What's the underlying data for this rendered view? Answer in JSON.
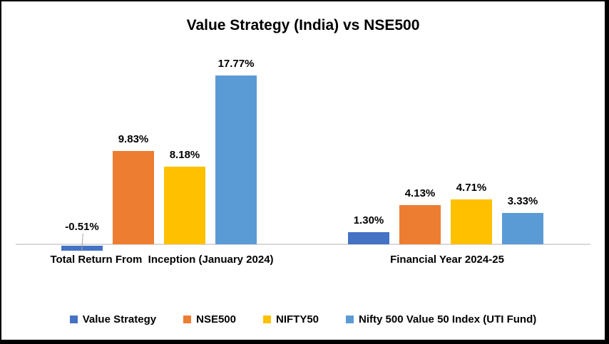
{
  "title": "Value Strategy (India) vs NSE500",
  "chart_data": {
    "type": "bar",
    "categories": [
      "Total Return From  Inception (January 2024)",
      "Financial Year 2024-25"
    ],
    "series": [
      {
        "name": "Value Strategy",
        "color": "#4472C4",
        "values": [
          -0.51,
          1.3
        ],
        "labels": [
          "-0.51%",
          "1.30%"
        ]
      },
      {
        "name": "NSE500",
        "color": "#ED7D31",
        "values": [
          9.83,
          4.13
        ],
        "labels": [
          "9.83%",
          "4.13%"
        ]
      },
      {
        "name": "NIFTY50",
        "color": "#FFC000",
        "values": [
          8.18,
          4.71
        ],
        "labels": [
          "8.18%",
          "4.71%"
        ]
      },
      {
        "name": "Nifty 500 Value 50 Index (UTI Fund)",
        "color": "#5B9BD5",
        "values": [
          17.77,
          3.33
        ],
        "labels": [
          "17.77%",
          "3.33%"
        ]
      }
    ],
    "ylim": [
      -1,
      20
    ],
    "grid": false,
    "legend_position": "bottom",
    "axis_line_color": "#D9D9D9",
    "data_label_format": "0.00%"
  }
}
